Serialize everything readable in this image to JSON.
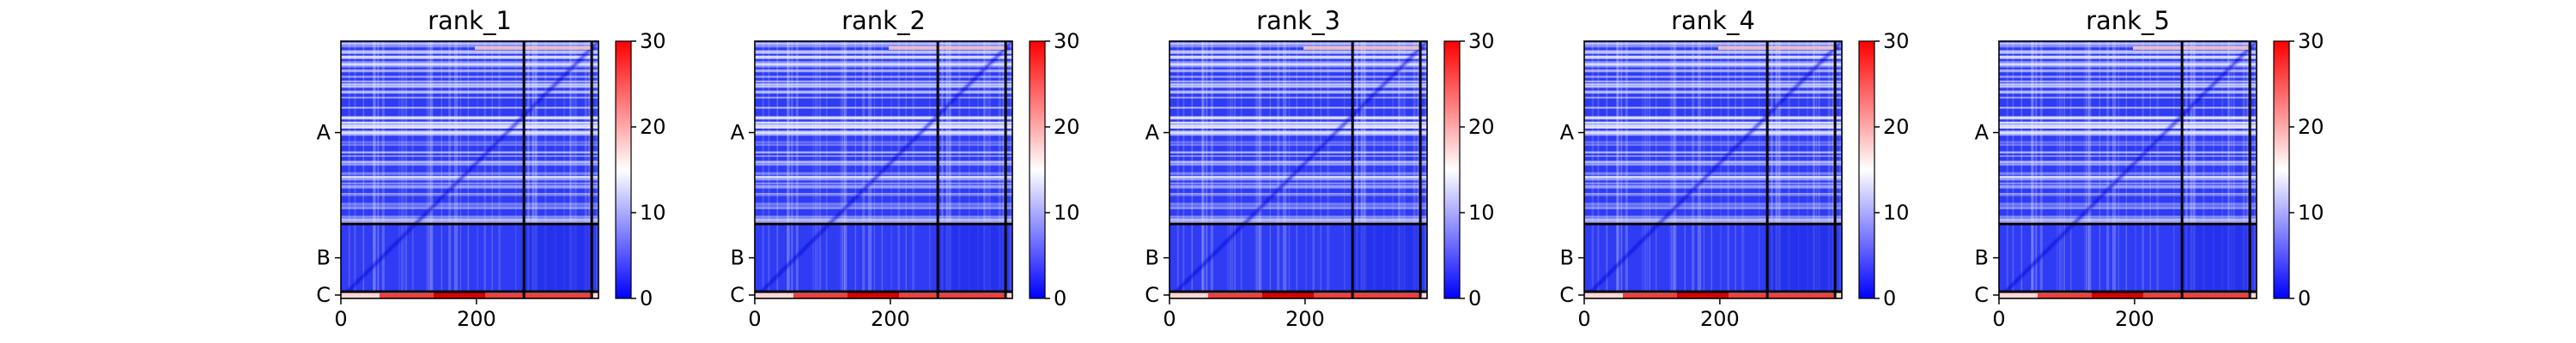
{
  "chart_data": {
    "type": "heatmap",
    "xticks": [
      0,
      200
    ],
    "chains": [
      "A",
      "B",
      "C"
    ],
    "chain_lengths": [
      270,
      100,
      10
    ],
    "total_length": 380,
    "colorbar": {
      "ticks": [
        0,
        10,
        20,
        30
      ],
      "vmin": 0,
      "vmax": 30
    },
    "colormap": {
      "low": "#0000ff",
      "mid": "#ffffff",
      "high": "#ff0000"
    },
    "grid": false,
    "panels": [
      {
        "title": "rank_1"
      },
      {
        "title": "rank_2"
      },
      {
        "title": "rank_3"
      },
      {
        "title": "rank_4"
      },
      {
        "title": "rank_5"
      }
    ]
  }
}
